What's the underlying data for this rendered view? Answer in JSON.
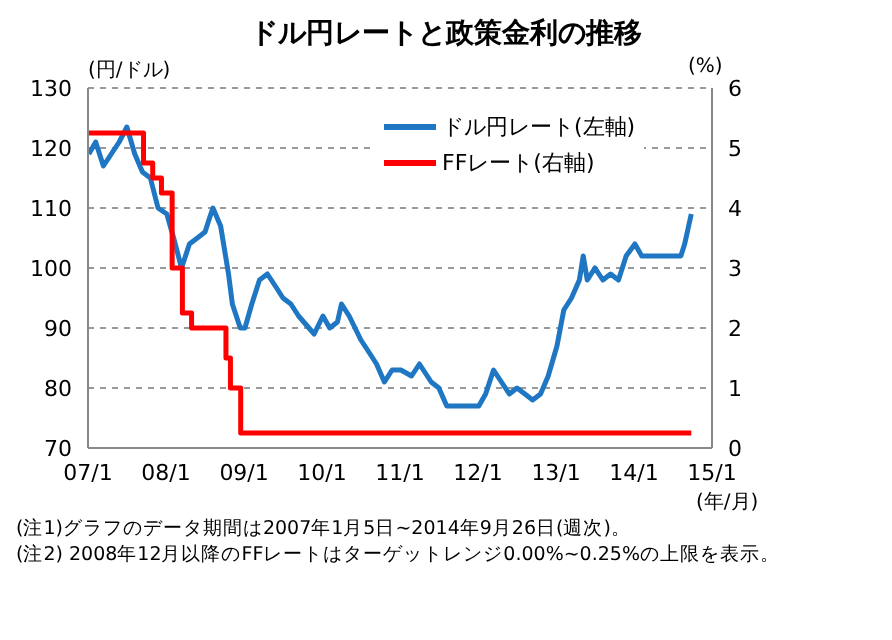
{
  "chart_data": {
    "type": "line",
    "title": "ドル円レートと政策金利の推移",
    "xlabel": "(年/月)",
    "ylabel": "(円/ドル)",
    "y2label": "(%)",
    "xlim": [
      "2007-01",
      "2015-01"
    ],
    "xticks": [
      {
        "value": "2007-01",
        "label": "07/1"
      },
      {
        "value": "2008-01",
        "label": "08/1"
      },
      {
        "value": "2009-01",
        "label": "09/1"
      },
      {
        "value": "2010-01",
        "label": "10/1"
      },
      {
        "value": "2011-01",
        "label": "11/1"
      },
      {
        "value": "2012-01",
        "label": "12/1"
      },
      {
        "value": "2013-01",
        "label": "13/1"
      },
      {
        "value": "2014-01",
        "label": "14/1"
      },
      {
        "value": "2015-01",
        "label": "15/1"
      }
    ],
    "ylim": [
      70,
      130
    ],
    "yticks": [
      70,
      80,
      90,
      100,
      110,
      120,
      130
    ],
    "y2lim": [
      0,
      6
    ],
    "y2ticks": [
      0,
      1,
      2,
      3,
      4,
      5,
      6
    ],
    "grid": "y",
    "legend": "top right",
    "marker": "none",
    "line_style": "solid",
    "series": [
      {
        "name": "ドル円レート(左軸)",
        "color": "#1f77c4",
        "type": "line",
        "x": [
          "2007-01-05",
          "2007-02-06",
          "2007-03-14",
          "2007-05-27",
          "2007-07-02",
          "2007-08-08",
          "2007-09-13",
          "2007-10-20",
          "2007-11-25",
          "2008-01-05",
          "2008-02-06",
          "2008-03-14",
          "2008-04-20",
          "2008-05-27",
          "2008-07-02",
          "2008-07-20",
          "2008-08-08",
          "2008-09-13",
          "2008-10-20",
          "2008-11-07",
          "2008-12-14",
          "2009-01-05",
          "2009-02-06",
          "2009-03-14",
          "2009-04-20",
          "2009-05-27",
          "2009-07-02",
          "2009-08-08",
          "2009-09-13",
          "2009-11-25",
          "2010-01-05",
          "2010-02-06",
          "2010-03-14",
          "2010-04-02",
          "2010-05-08",
          "2010-07-02",
          "2010-08-08",
          "2010-09-13",
          "2010-10-20",
          "2010-11-25",
          "2011-01-05",
          "2011-02-24",
          "2011-04-02",
          "2011-05-27",
          "2011-07-02",
          "2011-08-08",
          "2011-09-13",
          "2011-10-20",
          "2011-11-25",
          "2012-01-05",
          "2012-02-06",
          "2012-03-14",
          "2012-04-20",
          "2012-05-27",
          "2012-07-02",
          "2012-08-08",
          "2012-09-13",
          "2012-10-20",
          "2012-11-25",
          "2013-01-05",
          "2013-02-06",
          "2013-03-14",
          "2013-04-20",
          "2013-05-08",
          "2013-05-27",
          "2013-07-02",
          "2013-08-08",
          "2013-09-13",
          "2013-10-20",
          "2013-11-25",
          "2014-01-05",
          "2014-02-06",
          "2014-04-20",
          "2014-07-02",
          "2014-08-08",
          "2014-08-26",
          "2014-09-26"
        ],
        "values": [
          119,
          121,
          117,
          121,
          123.5,
          119,
          116,
          115,
          110,
          109,
          105,
          100,
          104,
          105,
          106,
          108,
          110,
          107,
          99,
          94,
          90,
          90,
          94,
          98,
          99,
          97,
          95,
          94,
          92,
          89,
          92,
          90,
          91,
          94,
          92,
          88,
          86,
          84,
          81,
          83,
          83,
          82,
          84,
          81,
          80,
          77,
          77,
          77,
          77,
          77,
          79,
          83,
          81,
          79,
          80,
          79,
          78,
          79,
          82,
          87,
          93,
          95,
          98,
          102,
          98,
          100,
          98,
          99,
          98,
          102,
          104,
          102,
          102,
          102,
          102,
          104,
          109
        ]
      },
      {
        "name": "FFレート(右軸)",
        "color": "#ff0000",
        "type": "step",
        "axis": "y2",
        "x": [
          "2007-01-05",
          "2007-09-18",
          "2007-10-31",
          "2007-12-11",
          "2008-01-30",
          "2008-03-18",
          "2008-04-30",
          "2008-10-08",
          "2008-10-29",
          "2008-12-16",
          "2014-09-26"
        ],
        "values": [
          5.25,
          4.75,
          4.5,
          4.25,
          3.0,
          2.25,
          2.0,
          1.5,
          1.0,
          0.25,
          0.25
        ]
      }
    ],
    "annotations": [
      "(注1)グラフのデータ期間は2007年1月5日~2014年9月26日(週次)。",
      "(注2) 2008年12月以降のFFレートはターゲットレンジ0.00%~0.25%の上限を表示。"
    ]
  }
}
